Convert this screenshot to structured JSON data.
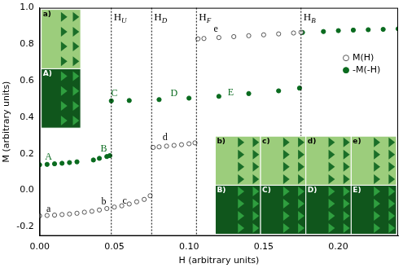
{
  "chart_data": {
    "type": "scatter",
    "x_label": "H (arbitrary units)",
    "y_label": "M (arbitrary units)",
    "xlim": [
      0,
      0.24
    ],
    "xticks": [
      {
        "value": 0,
        "label": "0.00"
      },
      0.05,
      {
        "value": 0.1,
        "label": "0.10"
      },
      0.15,
      {
        "value": 0.2,
        "label": "0.20"
      }
    ],
    "ylim": [
      -0.25,
      1.0
    ],
    "yticks": [
      -0.2,
      {
        "value": 0,
        "label": "0.0"
      },
      0.2,
      0.4,
      0.6,
      0.8,
      {
        "value": 1,
        "label": "1.0"
      }
    ],
    "grid": false,
    "legend": "right",
    "series": [
      {
        "name": "M(H)",
        "color": "#555555",
        "marker": "circle_open",
        "line_style": "none",
        "x": [
          0,
          0.005,
          0.01,
          0.015,
          0.02,
          0.025,
          0.03,
          0.035,
          0.04,
          0.045,
          0.05,
          0.055,
          0.06,
          0.065,
          0.07,
          0.074,
          0.076,
          0.08,
          0.085,
          0.09,
          0.095,
          0.1,
          0.104,
          0.106,
          0.11,
          0.12,
          0.13,
          0.14,
          0.15,
          0.16,
          0.17,
          0.175
        ],
        "values": [
          -0.14,
          -0.138,
          -0.136,
          -0.133,
          -0.13,
          -0.126,
          -0.12,
          -0.115,
          -0.108,
          -0.1,
          -0.092,
          -0.085,
          -0.075,
          -0.063,
          -0.05,
          -0.03,
          0.235,
          0.238,
          0.242,
          0.246,
          0.25,
          0.255,
          0.26,
          0.83,
          0.832,
          0.837,
          0.842,
          0.847,
          0.852,
          0.857,
          0.862,
          0.866
        ]
      },
      {
        "name": "-M(-H)",
        "color": "#0a6b1f",
        "marker": "circle",
        "line_style": "none",
        "x": [
          0,
          0.005,
          0.01,
          0.015,
          0.02,
          0.025,
          0.036,
          0.04,
          0.045,
          0.047,
          0.048,
          0.06,
          0.08,
          0.1,
          0.12,
          0.14,
          0.16,
          0.174,
          0.176,
          0.19,
          0.2,
          0.21,
          0.22,
          0.23,
          0.24
        ],
        "values": [
          0.14,
          0.142,
          0.145,
          0.148,
          0.152,
          0.156,
          0.166,
          0.175,
          0.185,
          0.19,
          0.49,
          0.492,
          0.497,
          0.505,
          0.515,
          0.53,
          0.545,
          0.56,
          0.865,
          0.87,
          0.875,
          0.878,
          0.88,
          0.882,
          0.885
        ]
      }
    ],
    "vlines": [
      {
        "x": 0.048,
        "label": "HU"
      },
      {
        "x": 0.075,
        "label": "HD"
      },
      {
        "x": 0.105,
        "label": "HF"
      },
      {
        "x": 0.175,
        "label": "HB"
      }
    ],
    "annotations": [
      {
        "text": "a",
        "x": 0.006,
        "y": -0.105
      },
      {
        "text": "b",
        "x": 0.043,
        "y": -0.065
      },
      {
        "text": "c",
        "x": 0.057,
        "y": -0.06
      },
      {
        "text": "d",
        "x": 0.084,
        "y": 0.29
      },
      {
        "text": "e",
        "x": 0.118,
        "y": 0.885
      },
      {
        "text": "A",
        "x": 0.006,
        "y": 0.18
      },
      {
        "text": "B",
        "x": 0.043,
        "y": 0.225
      },
      {
        "text": "C",
        "x": 0.05,
        "y": 0.53
      },
      {
        "text": "D",
        "x": 0.09,
        "y": 0.53
      },
      {
        "text": "E",
        "x": 0.128,
        "y": 0.535
      }
    ],
    "insets": {
      "top": [
        "a)",
        "b)",
        "c)",
        "d)",
        "e)"
      ],
      "bottom": [
        "A)",
        "B)",
        "C)",
        "D)",
        "E)"
      ]
    }
  }
}
